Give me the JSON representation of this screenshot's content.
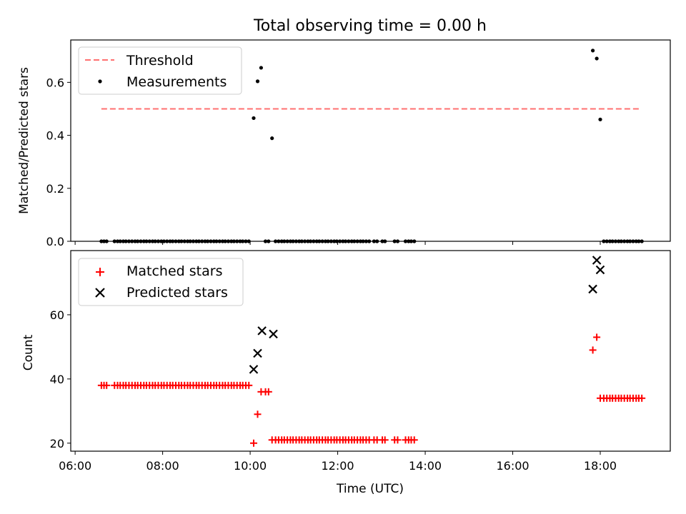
{
  "chart_data": [
    {
      "type": "scatter",
      "title": "Total observing time = 0.00 h",
      "xlabel": "",
      "ylabel": "Matched/Predicted stars",
      "x_unit": "hour of day (UTC)",
      "xlim": [
        5.9,
        19.6
      ],
      "ylim": [
        0,
        0.76
      ],
      "x_ticks": [
        6,
        8,
        10,
        12,
        14,
        16,
        18
      ],
      "x_tick_labels_visible": false,
      "y_ticks": [
        0,
        0.2,
        0.4,
        0.6
      ],
      "y_tick_labels": [
        "0.0",
        "0.2",
        "0.4",
        "0.6"
      ],
      "legend_position": "upper left",
      "threshold": {
        "name": "Threshold",
        "y": 0.5,
        "x_range": [
          6.6,
          18.9
        ],
        "color": "#ff7070",
        "style": "dashed"
      },
      "series": [
        {
          "name": "Measurements",
          "color": "#000000",
          "marker": "dot",
          "x": [
            6.6,
            6.66,
            6.72,
            6.9,
            6.97,
            7.03,
            7.1,
            7.16,
            7.23,
            7.3,
            7.37,
            7.43,
            7.5,
            7.57,
            7.63,
            7.7,
            7.77,
            7.83,
            7.9,
            7.97,
            8.03,
            8.1,
            8.17,
            8.23,
            8.3,
            8.37,
            8.43,
            8.5,
            8.57,
            8.63,
            8.7,
            8.77,
            8.83,
            8.9,
            8.97,
            9.03,
            9.1,
            9.17,
            9.23,
            9.3,
            9.37,
            9.43,
            9.5,
            9.57,
            9.63,
            9.7,
            9.77,
            9.83,
            9.9,
            9.97,
            10.08,
            10.17,
            10.25,
            10.35,
            10.42,
            10.5,
            10.58,
            10.65,
            10.72,
            10.78,
            10.85,
            10.92,
            10.98,
            11.05,
            11.12,
            11.18,
            11.25,
            11.32,
            11.38,
            11.45,
            11.52,
            11.58,
            11.65,
            11.72,
            11.78,
            11.85,
            11.92,
            11.98,
            12.05,
            12.12,
            12.18,
            12.25,
            12.32,
            12.38,
            12.45,
            12.52,
            12.58,
            12.65,
            12.72,
            12.83,
            12.9,
            13.02,
            13.08,
            13.3,
            13.37,
            13.55,
            13.62,
            13.68,
            13.75,
            17.83,
            17.92,
            18.0,
            18.08,
            18.15,
            18.22,
            18.28,
            18.35,
            18.42,
            18.48,
            18.55,
            18.62,
            18.68,
            18.75,
            18.82,
            18.88,
            18.95
          ],
          "y": [
            0,
            0,
            0,
            0,
            0,
            0,
            0,
            0,
            0,
            0,
            0,
            0,
            0,
            0,
            0,
            0,
            0,
            0,
            0,
            0,
            0,
            0,
            0,
            0,
            0,
            0,
            0,
            0,
            0,
            0,
            0,
            0,
            0,
            0,
            0,
            0,
            0,
            0,
            0,
            0,
            0,
            0,
            0,
            0,
            0,
            0,
            0,
            0,
            0,
            0,
            0.465,
            0.604,
            0.655,
            0,
            0,
            0.389,
            0,
            0,
            0,
            0,
            0,
            0,
            0,
            0,
            0,
            0,
            0,
            0,
            0,
            0,
            0,
            0,
            0,
            0,
            0,
            0,
            0,
            0,
            0,
            0,
            0,
            0,
            0,
            0,
            0,
            0,
            0,
            0,
            0,
            0,
            0,
            0,
            0,
            0,
            0,
            0,
            0,
            0,
            0,
            0.72,
            0.69,
            0.46,
            0,
            0,
            0,
            0,
            0,
            0,
            0,
            0,
            0,
            0,
            0,
            0,
            0,
            0
          ]
        }
      ]
    },
    {
      "type": "scatter",
      "title": "",
      "xlabel": "Time (UTC)",
      "ylabel": "Count",
      "x_unit": "hour of day (UTC)",
      "xlim": [
        5.9,
        19.6
      ],
      "ylim": [
        17.5,
        80
      ],
      "x_ticks": [
        6,
        8,
        10,
        12,
        14,
        16,
        18
      ],
      "x_tick_labels": [
        "06:00",
        "08:00",
        "10:00",
        "12:00",
        "14:00",
        "16:00",
        "18:00"
      ],
      "y_ticks": [
        20,
        40,
        60
      ],
      "y_tick_labels": [
        "20",
        "40",
        "60"
      ],
      "legend_position": "upper left",
      "series": [
        {
          "name": "Matched stars",
          "color": "#ff0000",
          "marker": "plus",
          "x": [
            6.6,
            6.66,
            6.72,
            6.9,
            6.97,
            7.03,
            7.1,
            7.16,
            7.23,
            7.3,
            7.37,
            7.43,
            7.5,
            7.57,
            7.63,
            7.7,
            7.77,
            7.83,
            7.9,
            7.97,
            8.03,
            8.1,
            8.17,
            8.23,
            8.3,
            8.37,
            8.43,
            8.5,
            8.57,
            8.63,
            8.7,
            8.77,
            8.83,
            8.9,
            8.97,
            9.03,
            9.1,
            9.17,
            9.23,
            9.3,
            9.37,
            9.43,
            9.5,
            9.57,
            9.63,
            9.7,
            9.77,
            9.83,
            9.9,
            9.97,
            10.08,
            10.17,
            10.25,
            10.35,
            10.42,
            10.5,
            10.58,
            10.65,
            10.72,
            10.78,
            10.85,
            10.92,
            10.98,
            11.05,
            11.12,
            11.18,
            11.25,
            11.32,
            11.38,
            11.45,
            11.52,
            11.58,
            11.65,
            11.72,
            11.78,
            11.85,
            11.92,
            11.98,
            12.05,
            12.12,
            12.18,
            12.25,
            12.32,
            12.38,
            12.45,
            12.52,
            12.58,
            12.65,
            12.72,
            12.83,
            12.9,
            13.02,
            13.08,
            13.3,
            13.37,
            13.55,
            13.62,
            13.68,
            13.75,
            17.83,
            17.92,
            18.0,
            18.08,
            18.15,
            18.22,
            18.28,
            18.35,
            18.42,
            18.48,
            18.55,
            18.62,
            18.68,
            18.75,
            18.82,
            18.88,
            18.95
          ],
          "y": [
            38,
            38,
            38,
            38,
            38,
            38,
            38,
            38,
            38,
            38,
            38,
            38,
            38,
            38,
            38,
            38,
            38,
            38,
            38,
            38,
            38,
            38,
            38,
            38,
            38,
            38,
            38,
            38,
            38,
            38,
            38,
            38,
            38,
            38,
            38,
            38,
            38,
            38,
            38,
            38,
            38,
            38,
            38,
            38,
            38,
            38,
            38,
            38,
            38,
            38,
            20,
            29,
            36,
            36,
            36,
            21,
            21,
            21,
            21,
            21,
            21,
            21,
            21,
            21,
            21,
            21,
            21,
            21,
            21,
            21,
            21,
            21,
            21,
            21,
            21,
            21,
            21,
            21,
            21,
            21,
            21,
            21,
            21,
            21,
            21,
            21,
            21,
            21,
            21,
            21,
            21,
            21,
            21,
            21,
            21,
            21,
            21,
            21,
            21,
            49,
            53,
            34,
            34,
            34,
            34,
            34,
            34,
            34,
            34,
            34,
            34,
            34,
            34,
            34,
            34,
            34
          ]
        },
        {
          "name": "Predicted stars",
          "color": "#000000",
          "marker": "x",
          "x": [
            10.08,
            10.17,
            10.27,
            10.53,
            17.83,
            17.92,
            18.0
          ],
          "y": [
            43,
            48,
            55,
            54,
            68,
            77,
            74
          ]
        }
      ]
    }
  ]
}
